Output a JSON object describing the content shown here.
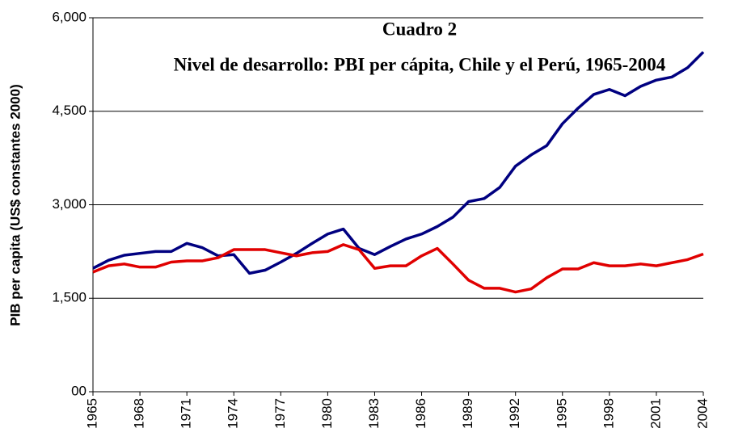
{
  "chart_data": {
    "type": "line",
    "title": "Cuadro 2",
    "subtitle": "Nivel de desarrollo: PBI per cápita, Chile y el Perú, 1965-2004",
    "y_label": "PIB per capita (US$ constantes 2000)",
    "x": [
      1965,
      1966,
      1967,
      1968,
      1969,
      1970,
      1971,
      1972,
      1973,
      1974,
      1975,
      1976,
      1977,
      1978,
      1979,
      1980,
      1981,
      1982,
      1983,
      1984,
      1985,
      1986,
      1987,
      1988,
      1989,
      1990,
      1991,
      1992,
      1993,
      1994,
      1995,
      1996,
      1997,
      1998,
      1999,
      2000,
      2001,
      2002,
      2003,
      2004
    ],
    "series": [
      {
        "color": "#000080",
        "values": [
          1980,
          2110,
          2190,
          2220,
          2250,
          2250,
          2380,
          2310,
          2180,
          2200,
          1900,
          1950,
          2080,
          2220,
          2380,
          2530,
          2610,
          2300,
          2200,
          2330,
          2450,
          2530,
          2650,
          2800,
          3050,
          3100,
          3280,
          3620,
          3800,
          3950,
          4300,
          4550,
          4770,
          4850,
          4750,
          4900,
          5000,
          5050,
          5200,
          5450
        ]
      },
      {
        "color": "#e00000",
        "values": [
          1920,
          2020,
          2050,
          2000,
          2000,
          2080,
          2100,
          2100,
          2150,
          2280,
          2280,
          2280,
          2230,
          2180,
          2230,
          2250,
          2360,
          2280,
          1980,
          2020,
          2020,
          2180,
          2300,
          2050,
          1790,
          1660,
          1660,
          1600,
          1650,
          1830,
          1970,
          1970,
          2070,
          2020,
          2020,
          2050,
          2020,
          2070,
          2120,
          2210
        ]
      }
    ],
    "xlim": [
      1965,
      2004
    ],
    "xticks": [
      1965,
      1968,
      1971,
      1974,
      1977,
      1980,
      1983,
      1986,
      1989,
      1992,
      1995,
      1998,
      2001,
      2004
    ],
    "ylim": [
      0,
      6000
    ],
    "yticks": [
      {
        "value": 0,
        "label": "00"
      },
      {
        "value": 1500,
        "label": "1,500"
      },
      {
        "value": 3000,
        "label": "3,000"
      },
      {
        "value": 4500,
        "label": "4,500"
      },
      {
        "value": 6000,
        "label": "6,000"
      }
    ],
    "grid": true
  }
}
